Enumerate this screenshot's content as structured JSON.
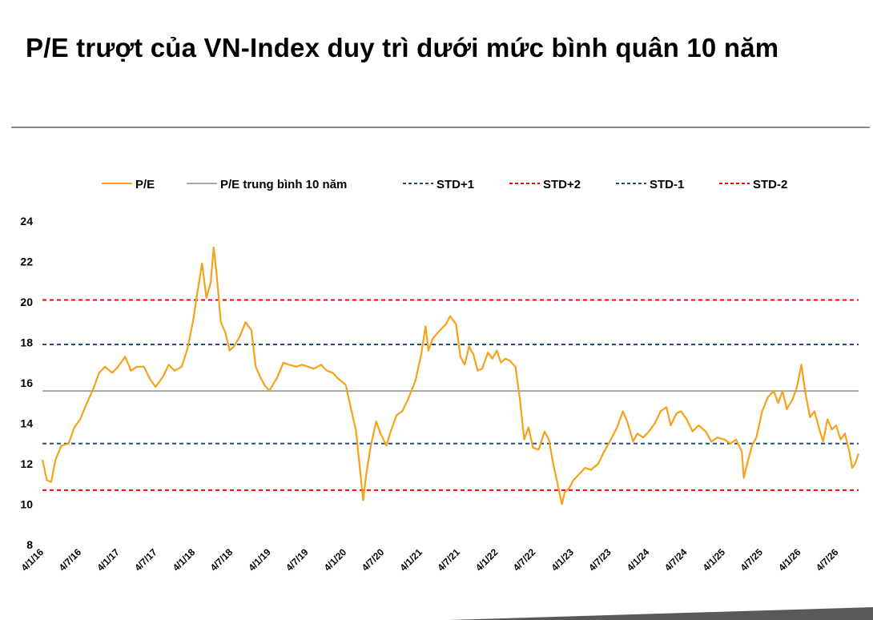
{
  "title": "P/E trượt của VN-Index duy trì dưới mức bình quân 10 năm",
  "colors": {
    "pe": "#F7A11A",
    "average": "#A6A6A6",
    "std_1": "#1F4E79",
    "std_2": "#FF0000",
    "rule": "#8A8A8A"
  },
  "chart_data": {
    "type": "line",
    "title": "",
    "xlabel": "",
    "ylabel": "",
    "ylim": [
      8,
      24
    ],
    "y_ticks": [
      "8",
      "10",
      "12",
      "14",
      "16",
      "18",
      "20",
      "22",
      "24"
    ],
    "x_range": [
      "2016-01-04",
      "2026-10-15"
    ],
    "x_ticks": [
      "4/1/16",
      "4/7/16",
      "4/1/17",
      "4/7/17",
      "4/1/18",
      "4/7/18",
      "4/1/19",
      "4/7/19",
      "4/1/20",
      "4/7/20",
      "4/1/21",
      "4/7/21",
      "4/1/22",
      "4/7/22",
      "4/1/23",
      "4/7/23",
      "4/1/24",
      "4/7/24",
      "4/1/25",
      "4/7/25",
      "4/1/26",
      "4/7/26"
    ],
    "grid": false,
    "legend_position": "top",
    "legend": [
      "P/E",
      "P/E trung bình 10 năm",
      "STD+1",
      "STD+2",
      "STD-1",
      "STD-2"
    ],
    "series": [
      {
        "name": "P/E",
        "style": "solid",
        "color": "#F7A11A",
        "points": [
          [
            "2016-01-04",
            12.2
          ],
          [
            "2016-01-25",
            11.2
          ],
          [
            "2016-02-15",
            11.1
          ],
          [
            "2016-03-07",
            12.2
          ],
          [
            "2016-04-04",
            12.9
          ],
          [
            "2016-05-09",
            13.0
          ],
          [
            "2016-06-06",
            13.8
          ],
          [
            "2016-07-04",
            14.2
          ],
          [
            "2016-08-01",
            14.9
          ],
          [
            "2016-09-05",
            15.7
          ],
          [
            "2016-10-03",
            16.5
          ],
          [
            "2016-11-01",
            16.8
          ],
          [
            "2016-12-05",
            16.5
          ],
          [
            "2017-01-03",
            16.8
          ],
          [
            "2017-02-06",
            17.3
          ],
          [
            "2017-03-06",
            16.6
          ],
          [
            "2017-04-03",
            16.8
          ],
          [
            "2017-05-08",
            16.8
          ],
          [
            "2017-06-05",
            16.2
          ],
          [
            "2017-07-03",
            15.8
          ],
          [
            "2017-08-07",
            16.3
          ],
          [
            "2017-09-04",
            16.9
          ],
          [
            "2017-10-02",
            16.6
          ],
          [
            "2017-11-06",
            16.8
          ],
          [
            "2017-12-04",
            17.7
          ],
          [
            "2018-01-02",
            19.2
          ],
          [
            "2018-01-22",
            20.6
          ],
          [
            "2018-02-12",
            21.9
          ],
          [
            "2018-03-05",
            20.2
          ],
          [
            "2018-03-26",
            21.0
          ],
          [
            "2018-04-09",
            22.7
          ],
          [
            "2018-04-23",
            21.4
          ],
          [
            "2018-05-14",
            19.0
          ],
          [
            "2018-06-04",
            18.5
          ],
          [
            "2018-06-25",
            17.6
          ],
          [
            "2018-07-16",
            17.8
          ],
          [
            "2018-08-13",
            18.3
          ],
          [
            "2018-09-10",
            19.0
          ],
          [
            "2018-10-08",
            18.6
          ],
          [
            "2018-10-29",
            16.8
          ],
          [
            "2018-11-19",
            16.3
          ],
          [
            "2018-12-10",
            15.9
          ],
          [
            "2019-01-02",
            15.6
          ],
          [
            "2019-02-11",
            16.3
          ],
          [
            "2019-03-11",
            17.0
          ],
          [
            "2019-04-08",
            16.9
          ],
          [
            "2019-05-13",
            16.8
          ],
          [
            "2019-06-10",
            16.9
          ],
          [
            "2019-07-08",
            16.8
          ],
          [
            "2019-08-05",
            16.7
          ],
          [
            "2019-09-09",
            16.9
          ],
          [
            "2019-10-07",
            16.6
          ],
          [
            "2019-11-04",
            16.5
          ],
          [
            "2019-12-02",
            16.2
          ],
          [
            "2020-01-06",
            15.9
          ],
          [
            "2020-02-03",
            14.6
          ],
          [
            "2020-02-24",
            13.7
          ],
          [
            "2020-03-16",
            11.6
          ],
          [
            "2020-03-30",
            10.2
          ],
          [
            "2020-04-13",
            11.4
          ],
          [
            "2020-05-04",
            12.8
          ],
          [
            "2020-06-01",
            14.1
          ],
          [
            "2020-06-22",
            13.5
          ],
          [
            "2020-07-20",
            12.9
          ],
          [
            "2020-08-10",
            13.6
          ],
          [
            "2020-09-07",
            14.4
          ],
          [
            "2020-10-05",
            14.6
          ],
          [
            "2020-11-02",
            15.2
          ],
          [
            "2020-12-07",
            16.1
          ],
          [
            "2021-01-04",
            17.4
          ],
          [
            "2021-01-25",
            18.8
          ],
          [
            "2021-02-08",
            17.6
          ],
          [
            "2021-03-01",
            18.2
          ],
          [
            "2021-04-05",
            18.6
          ],
          [
            "2021-05-03",
            18.9
          ],
          [
            "2021-05-24",
            19.3
          ],
          [
            "2021-06-21",
            18.9
          ],
          [
            "2021-07-12",
            17.3
          ],
          [
            "2021-08-02",
            16.9
          ],
          [
            "2021-08-23",
            17.8
          ],
          [
            "2021-09-13",
            17.4
          ],
          [
            "2021-10-04",
            16.6
          ],
          [
            "2021-10-25",
            16.7
          ],
          [
            "2021-11-22",
            17.5
          ],
          [
            "2021-12-13",
            17.2
          ],
          [
            "2022-01-04",
            17.6
          ],
          [
            "2022-01-24",
            17.0
          ],
          [
            "2022-02-14",
            17.2
          ],
          [
            "2022-03-07",
            17.1
          ],
          [
            "2022-04-04",
            16.8
          ],
          [
            "2022-04-25",
            15.2
          ],
          [
            "2022-05-16",
            13.2
          ],
          [
            "2022-06-06",
            13.8
          ],
          [
            "2022-06-27",
            12.8
          ],
          [
            "2022-07-25",
            12.7
          ],
          [
            "2022-08-22",
            13.6
          ],
          [
            "2022-09-12",
            13.2
          ],
          [
            "2022-10-03",
            12.0
          ],
          [
            "2022-10-24",
            11.0
          ],
          [
            "2022-11-14",
            10.0
          ],
          [
            "2022-11-28",
            10.6
          ],
          [
            "2022-12-19",
            10.8
          ],
          [
            "2023-01-09",
            11.2
          ],
          [
            "2023-02-06",
            11.5
          ],
          [
            "2023-03-06",
            11.8
          ],
          [
            "2023-04-03",
            11.7
          ],
          [
            "2023-05-08",
            12.0
          ],
          [
            "2023-06-05",
            12.6
          ],
          [
            "2023-07-03",
            13.1
          ],
          [
            "2023-08-07",
            13.8
          ],
          [
            "2023-09-04",
            14.6
          ],
          [
            "2023-09-25",
            14.1
          ],
          [
            "2023-10-23",
            13.1
          ],
          [
            "2023-11-13",
            13.5
          ],
          [
            "2023-12-11",
            13.3
          ],
          [
            "2024-01-08",
            13.6
          ],
          [
            "2024-02-05",
            14.0
          ],
          [
            "2024-03-04",
            14.6
          ],
          [
            "2024-04-01",
            14.8
          ],
          [
            "2024-04-22",
            13.9
          ],
          [
            "2024-05-20",
            14.5
          ],
          [
            "2024-06-10",
            14.6
          ],
          [
            "2024-07-08",
            14.2
          ],
          [
            "2024-08-05",
            13.6
          ],
          [
            "2024-09-03",
            13.9
          ],
          [
            "2024-10-07",
            13.6
          ],
          [
            "2024-11-04",
            13.1
          ],
          [
            "2024-12-02",
            13.3
          ],
          [
            "2025-01-06",
            13.2
          ],
          [
            "2025-02-03",
            13.0
          ],
          [
            "2025-03-03",
            13.2
          ],
          [
            "2025-03-31",
            12.6
          ],
          [
            "2025-04-09",
            11.3
          ],
          [
            "2025-04-28",
            12.1
          ],
          [
            "2025-05-19",
            12.9
          ],
          [
            "2025-06-09",
            13.3
          ],
          [
            "2025-07-07",
            14.6
          ],
          [
            "2025-08-04",
            15.3
          ],
          [
            "2025-09-01",
            15.6
          ],
          [
            "2025-09-22",
            15.0
          ],
          [
            "2025-10-13",
            15.6
          ],
          [
            "2025-11-03",
            14.7
          ],
          [
            "2025-12-01",
            15.2
          ],
          [
            "2025-12-22",
            15.8
          ],
          [
            "2026-01-12",
            16.9
          ],
          [
            "2026-02-02",
            15.4
          ],
          [
            "2026-02-23",
            14.3
          ],
          [
            "2026-03-16",
            14.6
          ],
          [
            "2026-04-06",
            13.8
          ],
          [
            "2026-04-27",
            13.1
          ],
          [
            "2026-05-18",
            14.2
          ],
          [
            "2026-06-08",
            13.7
          ],
          [
            "2026-06-29",
            13.9
          ],
          [
            "2026-07-20",
            13.2
          ],
          [
            "2026-08-10",
            13.5
          ],
          [
            "2026-08-31",
            12.6
          ],
          [
            "2026-09-14",
            11.8
          ],
          [
            "2026-09-28",
            12.0
          ],
          [
            "2026-10-15",
            12.5
          ]
        ]
      },
      {
        "name": "P/E trung bình 10 năm",
        "style": "solid",
        "color": "#A6A6A6",
        "constant": 15.6
      },
      {
        "name": "STD+1",
        "style": "dashed",
        "color": "#1F4E79",
        "constant": 17.9
      },
      {
        "name": "STD+2",
        "style": "dashed",
        "color": "#FF0000",
        "constant": 20.1
      },
      {
        "name": "STD-1",
        "style": "dashed",
        "color": "#1F4E79",
        "constant": 13.0
      },
      {
        "name": "STD-2",
        "style": "dashed",
        "color": "#FF0000",
        "constant": 10.7
      }
    ]
  }
}
